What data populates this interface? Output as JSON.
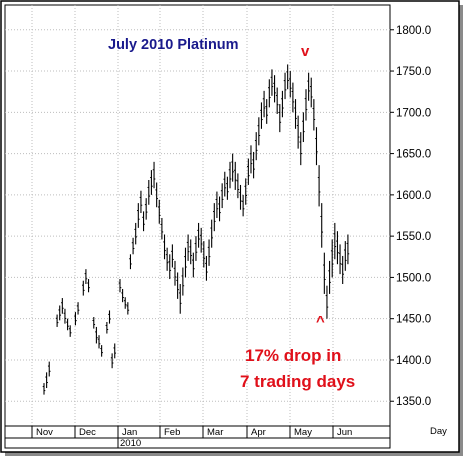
{
  "chart_data": {
    "type": "bar",
    "title": "July 2010 Platinum",
    "ylim": [
      1320,
      1830
    ],
    "yticks": [
      "1350.0",
      "1400.0",
      "1450.0",
      "1500.0",
      "1550.0",
      "1600.0",
      "1650.0",
      "1700.0",
      "1750.0",
      "1800.0"
    ],
    "xlabel": "Day",
    "months": [
      "Nov",
      "Dec",
      "Jan",
      "Feb",
      "Mar",
      "Apr",
      "May",
      "Jun"
    ],
    "year_label": "2010",
    "grid": true,
    "annotations": {
      "line1": "17% drop in",
      "line2": "7 trading days",
      "top_marker": "v",
      "bottom_marker": "^"
    },
    "colors": {
      "title": "#1a1a8c",
      "annotation": "#e0101a",
      "bars": "#000000",
      "grid": "#bdbdbd"
    },
    "series": [
      {
        "ohlc_note": "daily high-low bars, values approximate",
        "bars": [
          {
            "i": 0,
            "h": 1372,
            "l": 1358
          },
          {
            "i": 1,
            "h": 1385,
            "l": 1366
          },
          {
            "i": 2,
            "h": 1398,
            "l": 1380
          },
          {
            "i": 5,
            "h": 1455,
            "l": 1440
          },
          {
            "i": 6,
            "h": 1466,
            "l": 1448
          },
          {
            "i": 7,
            "h": 1475,
            "l": 1456
          },
          {
            "i": 8,
            "h": 1462,
            "l": 1444
          },
          {
            "i": 9,
            "h": 1450,
            "l": 1436
          },
          {
            "i": 10,
            "h": 1442,
            "l": 1428
          },
          {
            "i": 12,
            "h": 1458,
            "l": 1442
          },
          {
            "i": 13,
            "h": 1470,
            "l": 1455
          },
          {
            "i": 15,
            "h": 1496,
            "l": 1478
          },
          {
            "i": 16,
            "h": 1510,
            "l": 1492
          },
          {
            "i": 17,
            "h": 1498,
            "l": 1482
          },
          {
            "i": 19,
            "h": 1452,
            "l": 1438
          },
          {
            "i": 20,
            "h": 1440,
            "l": 1420
          },
          {
            "i": 21,
            "h": 1430,
            "l": 1414
          },
          {
            "i": 22,
            "h": 1418,
            "l": 1404
          },
          {
            "i": 24,
            "h": 1446,
            "l": 1432
          },
          {
            "i": 25,
            "h": 1460,
            "l": 1444
          },
          {
            "i": 26,
            "h": 1408,
            "l": 1390
          },
          {
            "i": 27,
            "h": 1420,
            "l": 1402
          },
          {
            "i": 29,
            "h": 1498,
            "l": 1482
          },
          {
            "i": 30,
            "h": 1486,
            "l": 1470
          },
          {
            "i": 31,
            "h": 1476,
            "l": 1462
          },
          {
            "i": 32,
            "h": 1470,
            "l": 1455
          },
          {
            "i": 33,
            "h": 1528,
            "l": 1510
          },
          {
            "i": 34,
            "h": 1548,
            "l": 1528
          },
          {
            "i": 35,
            "h": 1566,
            "l": 1540
          },
          {
            "i": 36,
            "h": 1590,
            "l": 1560
          },
          {
            "i": 37,
            "h": 1605,
            "l": 1578
          },
          {
            "i": 38,
            "h": 1580,
            "l": 1556
          },
          {
            "i": 39,
            "h": 1596,
            "l": 1570
          },
          {
            "i": 40,
            "h": 1618,
            "l": 1588
          },
          {
            "i": 41,
            "h": 1630,
            "l": 1600
          },
          {
            "i": 42,
            "h": 1640,
            "l": 1608
          },
          {
            "i": 43,
            "h": 1615,
            "l": 1585
          },
          {
            "i": 44,
            "h": 1594,
            "l": 1565
          },
          {
            "i": 45,
            "h": 1572,
            "l": 1546
          },
          {
            "i": 46,
            "h": 1552,
            "l": 1522
          },
          {
            "i": 47,
            "h": 1536,
            "l": 1508
          },
          {
            "i": 48,
            "h": 1528,
            "l": 1498
          },
          {
            "i": 49,
            "h": 1540,
            "l": 1512
          },
          {
            "i": 50,
            "h": 1520,
            "l": 1490
          },
          {
            "i": 51,
            "h": 1506,
            "l": 1474
          },
          {
            "i": 52,
            "h": 1492,
            "l": 1456
          },
          {
            "i": 53,
            "h": 1512,
            "l": 1478
          },
          {
            "i": 54,
            "h": 1536,
            "l": 1500
          },
          {
            "i": 55,
            "h": 1552,
            "l": 1520
          },
          {
            "i": 56,
            "h": 1546,
            "l": 1516
          },
          {
            "i": 57,
            "h": 1530,
            "l": 1500
          },
          {
            "i": 58,
            "h": 1550,
            "l": 1520
          },
          {
            "i": 59,
            "h": 1566,
            "l": 1536
          },
          {
            "i": 60,
            "h": 1560,
            "l": 1530
          },
          {
            "i": 61,
            "h": 1544,
            "l": 1512
          },
          {
            "i": 62,
            "h": 1526,
            "l": 1496
          },
          {
            "i": 63,
            "h": 1546,
            "l": 1514
          },
          {
            "i": 64,
            "h": 1570,
            "l": 1536
          },
          {
            "i": 65,
            "h": 1590,
            "l": 1556
          },
          {
            "i": 66,
            "h": 1604,
            "l": 1572
          },
          {
            "i": 67,
            "h": 1598,
            "l": 1568
          },
          {
            "i": 68,
            "h": 1614,
            "l": 1584
          },
          {
            "i": 69,
            "h": 1628,
            "l": 1598
          },
          {
            "i": 70,
            "h": 1622,
            "l": 1594
          },
          {
            "i": 71,
            "h": 1640,
            "l": 1608
          },
          {
            "i": 72,
            "h": 1650,
            "l": 1616
          },
          {
            "i": 73,
            "h": 1640,
            "l": 1606
          },
          {
            "i": 74,
            "h": 1626,
            "l": 1596
          },
          {
            "i": 75,
            "h": 1612,
            "l": 1582
          },
          {
            "i": 76,
            "h": 1600,
            "l": 1574
          },
          {
            "i": 77,
            "h": 1620,
            "l": 1588
          },
          {
            "i": 78,
            "h": 1644,
            "l": 1612
          },
          {
            "i": 79,
            "h": 1660,
            "l": 1626
          },
          {
            "i": 80,
            "h": 1652,
            "l": 1620
          },
          {
            "i": 81,
            "h": 1676,
            "l": 1642
          },
          {
            "i": 82,
            "h": 1694,
            "l": 1660
          },
          {
            "i": 83,
            "h": 1712,
            "l": 1680
          },
          {
            "i": 84,
            "h": 1726,
            "l": 1694
          },
          {
            "i": 85,
            "h": 1716,
            "l": 1686
          },
          {
            "i": 86,
            "h": 1740,
            "l": 1706
          },
          {
            "i": 87,
            "h": 1752,
            "l": 1720
          },
          {
            "i": 88,
            "h": 1745,
            "l": 1712
          },
          {
            "i": 89,
            "h": 1730,
            "l": 1698
          },
          {
            "i": 90,
            "h": 1710,
            "l": 1676
          },
          {
            "i": 91,
            "h": 1726,
            "l": 1694
          },
          {
            "i": 92,
            "h": 1748,
            "l": 1716
          },
          {
            "i": 93,
            "h": 1758,
            "l": 1728
          },
          {
            "i": 94,
            "h": 1750,
            "l": 1718
          },
          {
            "i": 95,
            "h": 1736,
            "l": 1700
          },
          {
            "i": 96,
            "h": 1716,
            "l": 1680
          },
          {
            "i": 97,
            "h": 1696,
            "l": 1656
          },
          {
            "i": 98,
            "h": 1676,
            "l": 1636
          },
          {
            "i": 99,
            "h": 1700,
            "l": 1664
          },
          {
            "i": 100,
            "h": 1728,
            "l": 1690
          },
          {
            "i": 101,
            "h": 1748,
            "l": 1714
          },
          {
            "i": 102,
            "h": 1742,
            "l": 1706
          },
          {
            "i": 103,
            "h": 1716,
            "l": 1678
          },
          {
            "i": 104,
            "h": 1682,
            "l": 1636
          },
          {
            "i": 105,
            "h": 1636,
            "l": 1586
          },
          {
            "i": 106,
            "h": 1590,
            "l": 1536
          },
          {
            "i": 107,
            "h": 1530,
            "l": 1480
          },
          {
            "i": 108,
            "h": 1490,
            "l": 1450
          },
          {
            "i": 109,
            "h": 1520,
            "l": 1480
          },
          {
            "i": 110,
            "h": 1546,
            "l": 1500
          },
          {
            "i": 111,
            "h": 1566,
            "l": 1522
          },
          {
            "i": 112,
            "h": 1556,
            "l": 1516
          },
          {
            "i": 113,
            "h": 1540,
            "l": 1504
          },
          {
            "i": 114,
            "h": 1526,
            "l": 1492
          },
          {
            "i": 115,
            "h": 1544,
            "l": 1508
          },
          {
            "i": 116,
            "h": 1552,
            "l": 1516
          }
        ]
      }
    ]
  }
}
